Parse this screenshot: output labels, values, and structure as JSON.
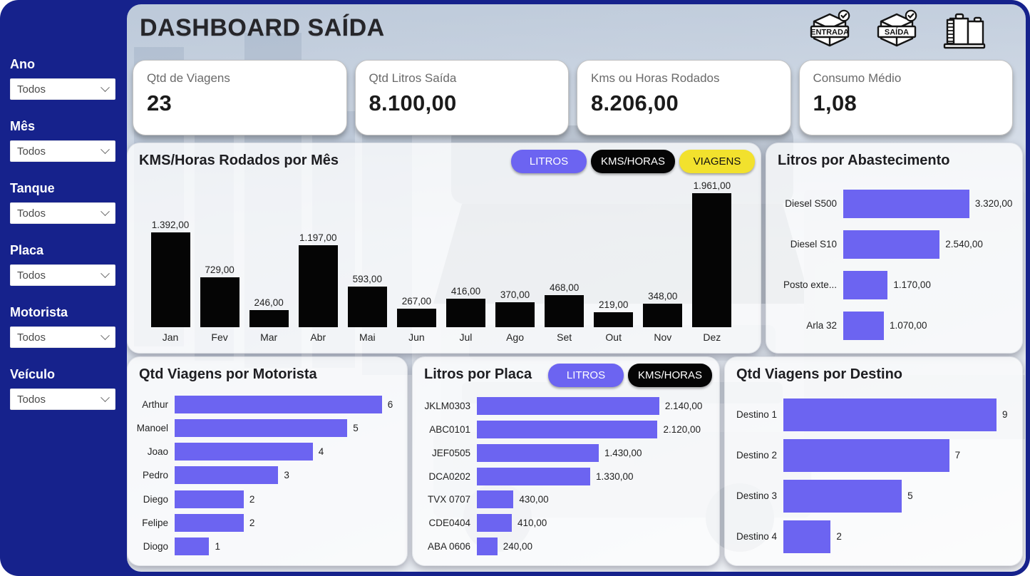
{
  "app": {
    "title": "DASHBOARD SAÍDA"
  },
  "header": {
    "icons": [
      {
        "name": "entrada-box-icon",
        "label": "ENTRADA"
      },
      {
        "name": "saida-box-icon",
        "label": "SAÍDA"
      },
      {
        "name": "fuel-tank-icon",
        "label": ""
      }
    ]
  },
  "sidebar": {
    "filters": [
      {
        "label": "Ano",
        "value": "Todos"
      },
      {
        "label": "Mês",
        "value": "Todos"
      },
      {
        "label": "Tanque",
        "value": "Todos"
      },
      {
        "label": "Placa",
        "value": "Todos"
      },
      {
        "label": "Motorista",
        "value": "Todos"
      },
      {
        "label": "Veículo",
        "value": "Todos"
      }
    ]
  },
  "kpis": [
    {
      "label": "Qtd de Viagens",
      "value": "23"
    },
    {
      "label": "Qtd Litros Saída",
      "value": "8.100,00"
    },
    {
      "label": "Kms ou Horas Rodados",
      "value": "8.206,00"
    },
    {
      "label": "Consumo Médio",
      "value": "1,08"
    }
  ],
  "toggles": {
    "kms_mes": [
      {
        "label": "LITROS",
        "variant": "primary"
      },
      {
        "label": "KMS/HORAS",
        "variant": "dark"
      },
      {
        "label": "VIAGENS",
        "variant": "yellow"
      }
    ],
    "placa": [
      {
        "label": "LITROS",
        "variant": "primary"
      },
      {
        "label": "KMS/HORAS",
        "variant": "dark"
      }
    ]
  },
  "colors": {
    "frame_blue": "#16228C",
    "accent_purple": "#6C64F1",
    "toggle_dark": "#050505",
    "toggle_yellow": "#F2E12D",
    "column_black": "#050505"
  },
  "chart_data": [
    {
      "type": "bar",
      "title": "KMS/Horas Rodados por Mês",
      "categories": [
        "Jan",
        "Fev",
        "Mar",
        "Abr",
        "Mai",
        "Jun",
        "Jul",
        "Ago",
        "Set",
        "Out",
        "Nov",
        "Dez"
      ],
      "values": [
        1392,
        729,
        246,
        1197,
        593,
        267,
        416,
        370,
        468,
        219,
        348,
        1961
      ],
      "labels": [
        "1.392,00",
        "729,00",
        "246,00",
        "1.197,00",
        "593,00",
        "267,00",
        "416,00",
        "370,00",
        "468,00",
        "219,00",
        "348,00",
        "1.961,00"
      ],
      "ylim": [
        0,
        1961
      ],
      "bar_color": "#050505",
      "legend": "none",
      "grid": false
    },
    {
      "type": "bar",
      "orientation": "horizontal",
      "title": "Litros por Abastecimento",
      "categories": [
        "Diesel S500",
        "Diesel S10",
        "Posto exte...",
        "Arla 32"
      ],
      "values": [
        3320,
        2540,
        1170,
        1070
      ],
      "labels": [
        "3.320,00",
        "2.540,00",
        "1.170,00",
        "1.070,00"
      ],
      "xlim": [
        0,
        3320
      ],
      "bar_color": "#6C64F1",
      "legend": "none",
      "grid": false
    },
    {
      "type": "bar",
      "orientation": "horizontal",
      "title": "Qtd Viagens por Motorista",
      "categories": [
        "Arthur",
        "Manoel",
        "Joao",
        "Pedro",
        "Diego",
        "Felipe",
        "Diogo"
      ],
      "values": [
        6,
        5,
        4,
        3,
        2,
        2,
        1
      ],
      "labels": [
        "6",
        "5",
        "4",
        "3",
        "2",
        "2",
        "1"
      ],
      "xlim": [
        0,
        6
      ],
      "bar_color": "#6C64F1",
      "legend": "none",
      "grid": false
    },
    {
      "type": "bar",
      "orientation": "horizontal",
      "title": "Litros por Placa",
      "categories": [
        "JKLM0303",
        "ABC0101",
        "JEF0505",
        "DCA0202",
        "TVX 0707",
        "CDE0404",
        "ABA 0606"
      ],
      "values": [
        2140,
        2120,
        1430,
        1330,
        430,
        410,
        240
      ],
      "labels": [
        "2.140,00",
        "2.120,00",
        "1.430,00",
        "1.330,00",
        "430,00",
        "410,00",
        "240,00"
      ],
      "xlim": [
        0,
        2140
      ],
      "bar_color": "#6C64F1",
      "legend": "none",
      "grid": false
    },
    {
      "type": "bar",
      "orientation": "horizontal",
      "title": "Qtd Viagens por Destino",
      "categories": [
        "Destino 1",
        "Destino 2",
        "Destino 3",
        "Destino 4"
      ],
      "values": [
        9,
        7,
        5,
        2
      ],
      "labels": [
        "9",
        "7",
        "5",
        "2"
      ],
      "xlim": [
        0,
        9
      ],
      "bar_color": "#6C64F1",
      "legend": "none",
      "grid": false
    }
  ]
}
